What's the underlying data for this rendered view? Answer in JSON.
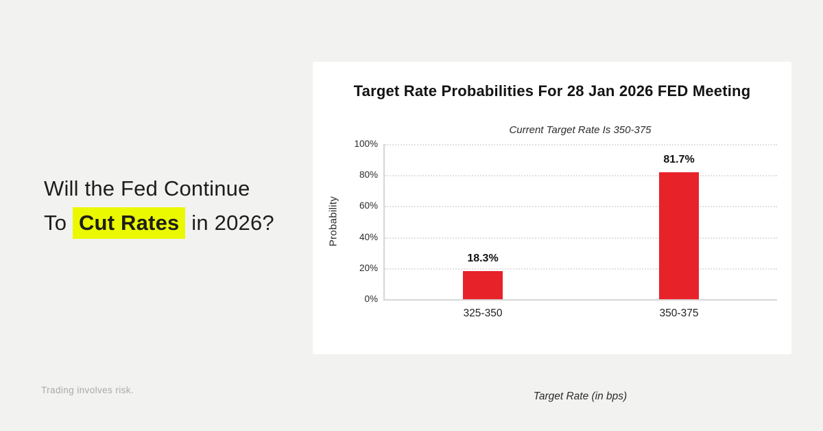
{
  "page": {
    "headline_line1": "Will the Fed Continue",
    "headline_line2_before": "To ",
    "headline_highlight": "Cut Rates",
    "headline_line2_after": " in 2026?",
    "disclaimer": "Trading involves risk.",
    "colors": {
      "background": "#f2f2f0",
      "card": "#ffffff",
      "bar_red": "#e82229",
      "highlight_yellow": "#eaf800",
      "text_dark": "#1d1d1b",
      "text_gray": "#a9a9a7"
    }
  },
  "chart_data": {
    "type": "bar",
    "title": "Target Rate Probabilities For 28 Jan 2026 FED Meeting",
    "subtitle": "Current Target Rate Is 350-375",
    "categories": [
      "325-350",
      "350-375"
    ],
    "values": [
      18.3,
      81.7
    ],
    "value_labels": [
      "18.3%",
      "81.7%"
    ],
    "xlabel": "Target Rate (in bps)",
    "ylabel": "Probability",
    "ylim": [
      0,
      100
    ],
    "yticks": [
      0,
      20,
      40,
      60,
      80,
      100
    ],
    "ytick_labels": [
      "0%",
      "20%",
      "40%",
      "60%",
      "80%",
      "100%"
    ],
    "bar_color": "#e82229",
    "grid": "horizontal-dotted",
    "legend": "none"
  }
}
